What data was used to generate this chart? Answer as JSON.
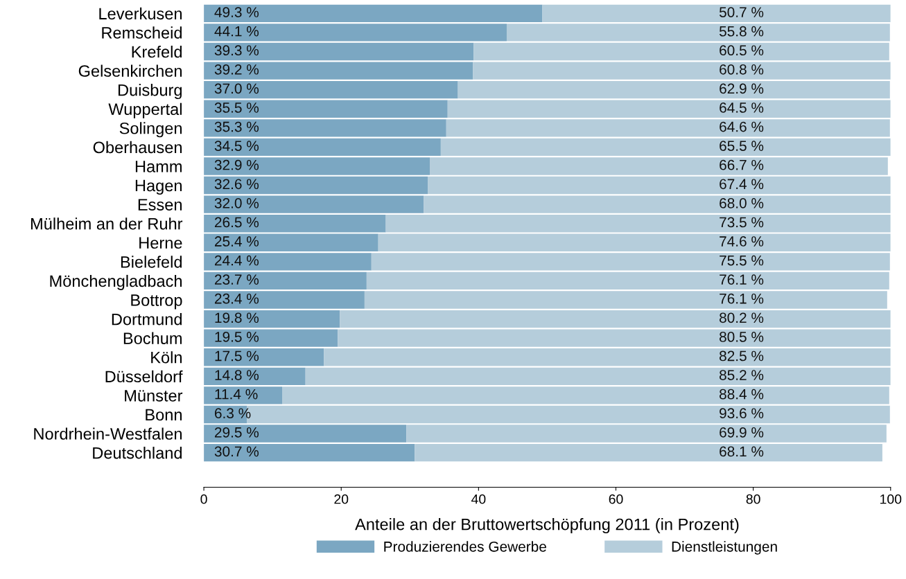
{
  "chart_data": {
    "type": "bar",
    "orientation": "horizontal",
    "stacked": true,
    "xlabel": "Anteile an der Bruttowertschöpfung 2011 (in Prozent)",
    "categories": [
      "Leverkusen",
      "Remscheid",
      "Krefeld",
      "Gelsenkirchen",
      "Duisburg",
      "Wuppertal",
      "Solingen",
      "Oberhausen",
      "Hamm",
      "Hagen",
      "Essen",
      "Mülheim an der Ruhr",
      "Herne",
      "Bielefeld",
      "Mönchengladbach",
      "Bottrop",
      "Dortmund",
      "Bochum",
      "Köln",
      "Düsseldorf",
      "Münster",
      "Bonn",
      "Nordrhein-Westfalen",
      "Deutschland"
    ],
    "series": [
      {
        "name": "Produzierendes Gewerbe",
        "color": "#7ba7c2",
        "values": [
          49.3,
          44.1,
          39.3,
          39.2,
          37.0,
          35.5,
          35.3,
          34.5,
          32.9,
          32.6,
          32.0,
          26.5,
          25.4,
          24.4,
          23.7,
          23.4,
          19.8,
          19.5,
          17.5,
          14.8,
          11.4,
          6.3,
          29.5,
          30.7
        ],
        "value_labels": [
          "49.3 %",
          "44.1 %",
          "39.3 %",
          "39.2 %",
          "37.0 %",
          "35.5 %",
          "35.3 %",
          "34.5 %",
          "32.9 %",
          "32.6 %",
          "32.0 %",
          "26.5 %",
          "25.4 %",
          "24.4 %",
          "23.7 %",
          "23.4 %",
          "19.8 %",
          "19.5 %",
          "17.5 %",
          "14.8 %",
          "11.4 %",
          "6.3 %",
          "29.5 %",
          "30.7 %"
        ]
      },
      {
        "name": "Dienstleistungen",
        "color": "#b5cddb",
        "values": [
          50.7,
          55.8,
          60.5,
          60.8,
          62.9,
          64.5,
          64.6,
          65.5,
          66.7,
          67.4,
          68.0,
          73.5,
          74.6,
          75.5,
          76.1,
          76.1,
          80.2,
          80.5,
          82.5,
          85.2,
          88.4,
          93.6,
          69.9,
          68.1
        ],
        "value_labels": [
          "50.7 %",
          "55.8 %",
          "60.5 %",
          "60.8 %",
          "62.9 %",
          "64.5 %",
          "64.6 %",
          "65.5 %",
          "66.7 %",
          "67.4 %",
          "68.0 %",
          "73.5 %",
          "74.6 %",
          "75.5 %",
          "76.1 %",
          "76.1 %",
          "80.2 %",
          "80.5 %",
          "82.5 %",
          "85.2 %",
          "88.4 %",
          "93.6 %",
          "69.9 %",
          "68.1 %"
        ]
      }
    ],
    "xlim": [
      0,
      100
    ],
    "xticks": [
      0,
      20,
      40,
      60,
      80,
      100
    ],
    "grid": false,
    "legend": "bottom"
  }
}
